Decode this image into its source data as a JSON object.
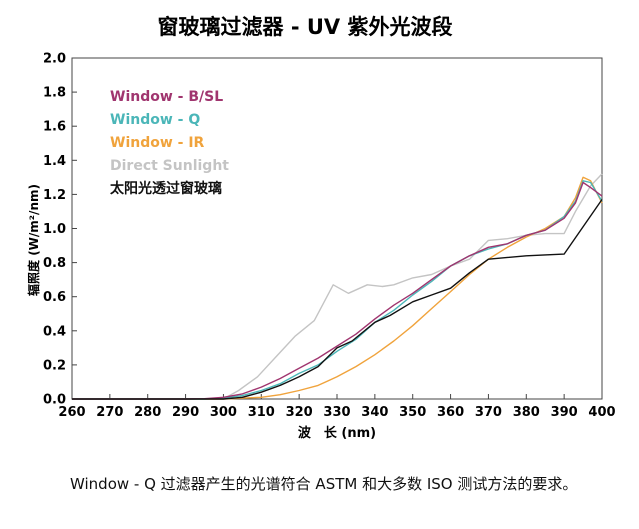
{
  "chart_data": {
    "type": "line",
    "title": "窗玻璃过滤器 - UV 紫外光波段",
    "xlabel": "波　长 (nm)",
    "ylabel": "辐照度 (W/m²/nm)",
    "xlim": [
      260,
      400
    ],
    "ylim": [
      0,
      2.0
    ],
    "x_ticks": [
      "260",
      "270",
      "280",
      "290",
      "300",
      "310",
      "320",
      "330",
      "340",
      "350",
      "360",
      "370",
      "380",
      "390",
      "400"
    ],
    "y_ticks": [
      "0.0",
      "0.2",
      "0.4",
      "0.6",
      "0.8",
      "1.0",
      "1.2",
      "1.4",
      "1.6",
      "1.8",
      "2.0"
    ],
    "grid": false,
    "legend_position": "top-left",
    "series": [
      {
        "name": "Window - B/SL",
        "color": "#a0356f",
        "points": [
          [
            260,
            0
          ],
          [
            290,
            0
          ],
          [
            295,
            0.002
          ],
          [
            300,
            0.01
          ],
          [
            305,
            0.03
          ],
          [
            310,
            0.07
          ],
          [
            315,
            0.12
          ],
          [
            320,
            0.18
          ],
          [
            325,
            0.24
          ],
          [
            330,
            0.31
          ],
          [
            335,
            0.38
          ],
          [
            340,
            0.47
          ],
          [
            345,
            0.55
          ],
          [
            350,
            0.62
          ],
          [
            355,
            0.7
          ],
          [
            360,
            0.78
          ],
          [
            365,
            0.84
          ],
          [
            370,
            0.89
          ],
          [
            375,
            0.91
          ],
          [
            380,
            0.96
          ],
          [
            385,
            0.99
          ],
          [
            390,
            1.06
          ],
          [
            393,
            1.15
          ],
          [
            395,
            1.27
          ],
          [
            397,
            1.24
          ],
          [
            400,
            1.19
          ]
        ]
      },
      {
        "name": "Window - Q",
        "color": "#4bb6b8",
        "points": [
          [
            260,
            0
          ],
          [
            295,
            0
          ],
          [
            300,
            0.005
          ],
          [
            305,
            0.02
          ],
          [
            310,
            0.05
          ],
          [
            315,
            0.09
          ],
          [
            320,
            0.15
          ],
          [
            325,
            0.2
          ],
          [
            330,
            0.28
          ],
          [
            335,
            0.35
          ],
          [
            340,
            0.45
          ],
          [
            345,
            0.52
          ],
          [
            350,
            0.61
          ],
          [
            355,
            0.69
          ],
          [
            360,
            0.78
          ],
          [
            365,
            0.84
          ],
          [
            370,
            0.88
          ],
          [
            375,
            0.91
          ],
          [
            380,
            0.96
          ],
          [
            385,
            0.99
          ],
          [
            390,
            1.07
          ],
          [
            393,
            1.16
          ],
          [
            395,
            1.28
          ],
          [
            397,
            1.27
          ],
          [
            400,
            1.16
          ]
        ]
      },
      {
        "name": "Window - IR",
        "color": "#f0a33c",
        "points": [
          [
            260,
            0
          ],
          [
            300,
            0
          ],
          [
            310,
            0.01
          ],
          [
            315,
            0.025
          ],
          [
            320,
            0.05
          ],
          [
            325,
            0.08
          ],
          [
            330,
            0.13
          ],
          [
            335,
            0.19
          ],
          [
            340,
            0.26
          ],
          [
            345,
            0.34
          ],
          [
            350,
            0.43
          ],
          [
            355,
            0.53
          ],
          [
            360,
            0.63
          ],
          [
            365,
            0.73
          ],
          [
            370,
            0.82
          ],
          [
            375,
            0.89
          ],
          [
            380,
            0.95
          ],
          [
            385,
            1.0
          ],
          [
            390,
            1.07
          ],
          [
            393,
            1.18
          ],
          [
            395,
            1.3
          ],
          [
            397,
            1.28
          ],
          [
            400,
            1.15
          ]
        ]
      },
      {
        "name": "Direct Sunlight",
        "color": "#c4c4c4",
        "points": [
          [
            260,
            0
          ],
          [
            300,
            0
          ],
          [
            304,
            0.05
          ],
          [
            309,
            0.13
          ],
          [
            314,
            0.25
          ],
          [
            319,
            0.37
          ],
          [
            324,
            0.46
          ],
          [
            329,
            0.67
          ],
          [
            333,
            0.62
          ],
          [
            338,
            0.67
          ],
          [
            342,
            0.66
          ],
          [
            345,
            0.67
          ],
          [
            350,
            0.71
          ],
          [
            355,
            0.73
          ],
          [
            360,
            0.78
          ],
          [
            365,
            0.82
          ],
          [
            370,
            0.93
          ],
          [
            375,
            0.94
          ],
          [
            380,
            0.96
          ],
          [
            385,
            0.97
          ],
          [
            390,
            0.97
          ],
          [
            393,
            1.1
          ],
          [
            397,
            1.25
          ],
          [
            400,
            1.32
          ]
        ]
      },
      {
        "name": "太阳光透过窗玻璃",
        "color": "#111111",
        "points": [
          [
            260,
            0
          ],
          [
            300,
            0
          ],
          [
            305,
            0.01
          ],
          [
            310,
            0.04
          ],
          [
            315,
            0.08
          ],
          [
            320,
            0.13
          ],
          [
            325,
            0.19
          ],
          [
            330,
            0.3
          ],
          [
            334,
            0.34
          ],
          [
            340,
            0.45
          ],
          [
            344,
            0.49
          ],
          [
            350,
            0.57
          ],
          [
            355,
            0.61
          ],
          [
            360,
            0.65
          ],
          [
            365,
            0.74
          ],
          [
            370,
            0.82
          ],
          [
            380,
            0.84
          ],
          [
            390,
            0.85
          ],
          [
            400,
            1.17
          ]
        ]
      }
    ]
  },
  "caption": "Window - Q 过滤器产生的光谱符合 ASTM 和大多数 ISO 测试方法的要求。"
}
